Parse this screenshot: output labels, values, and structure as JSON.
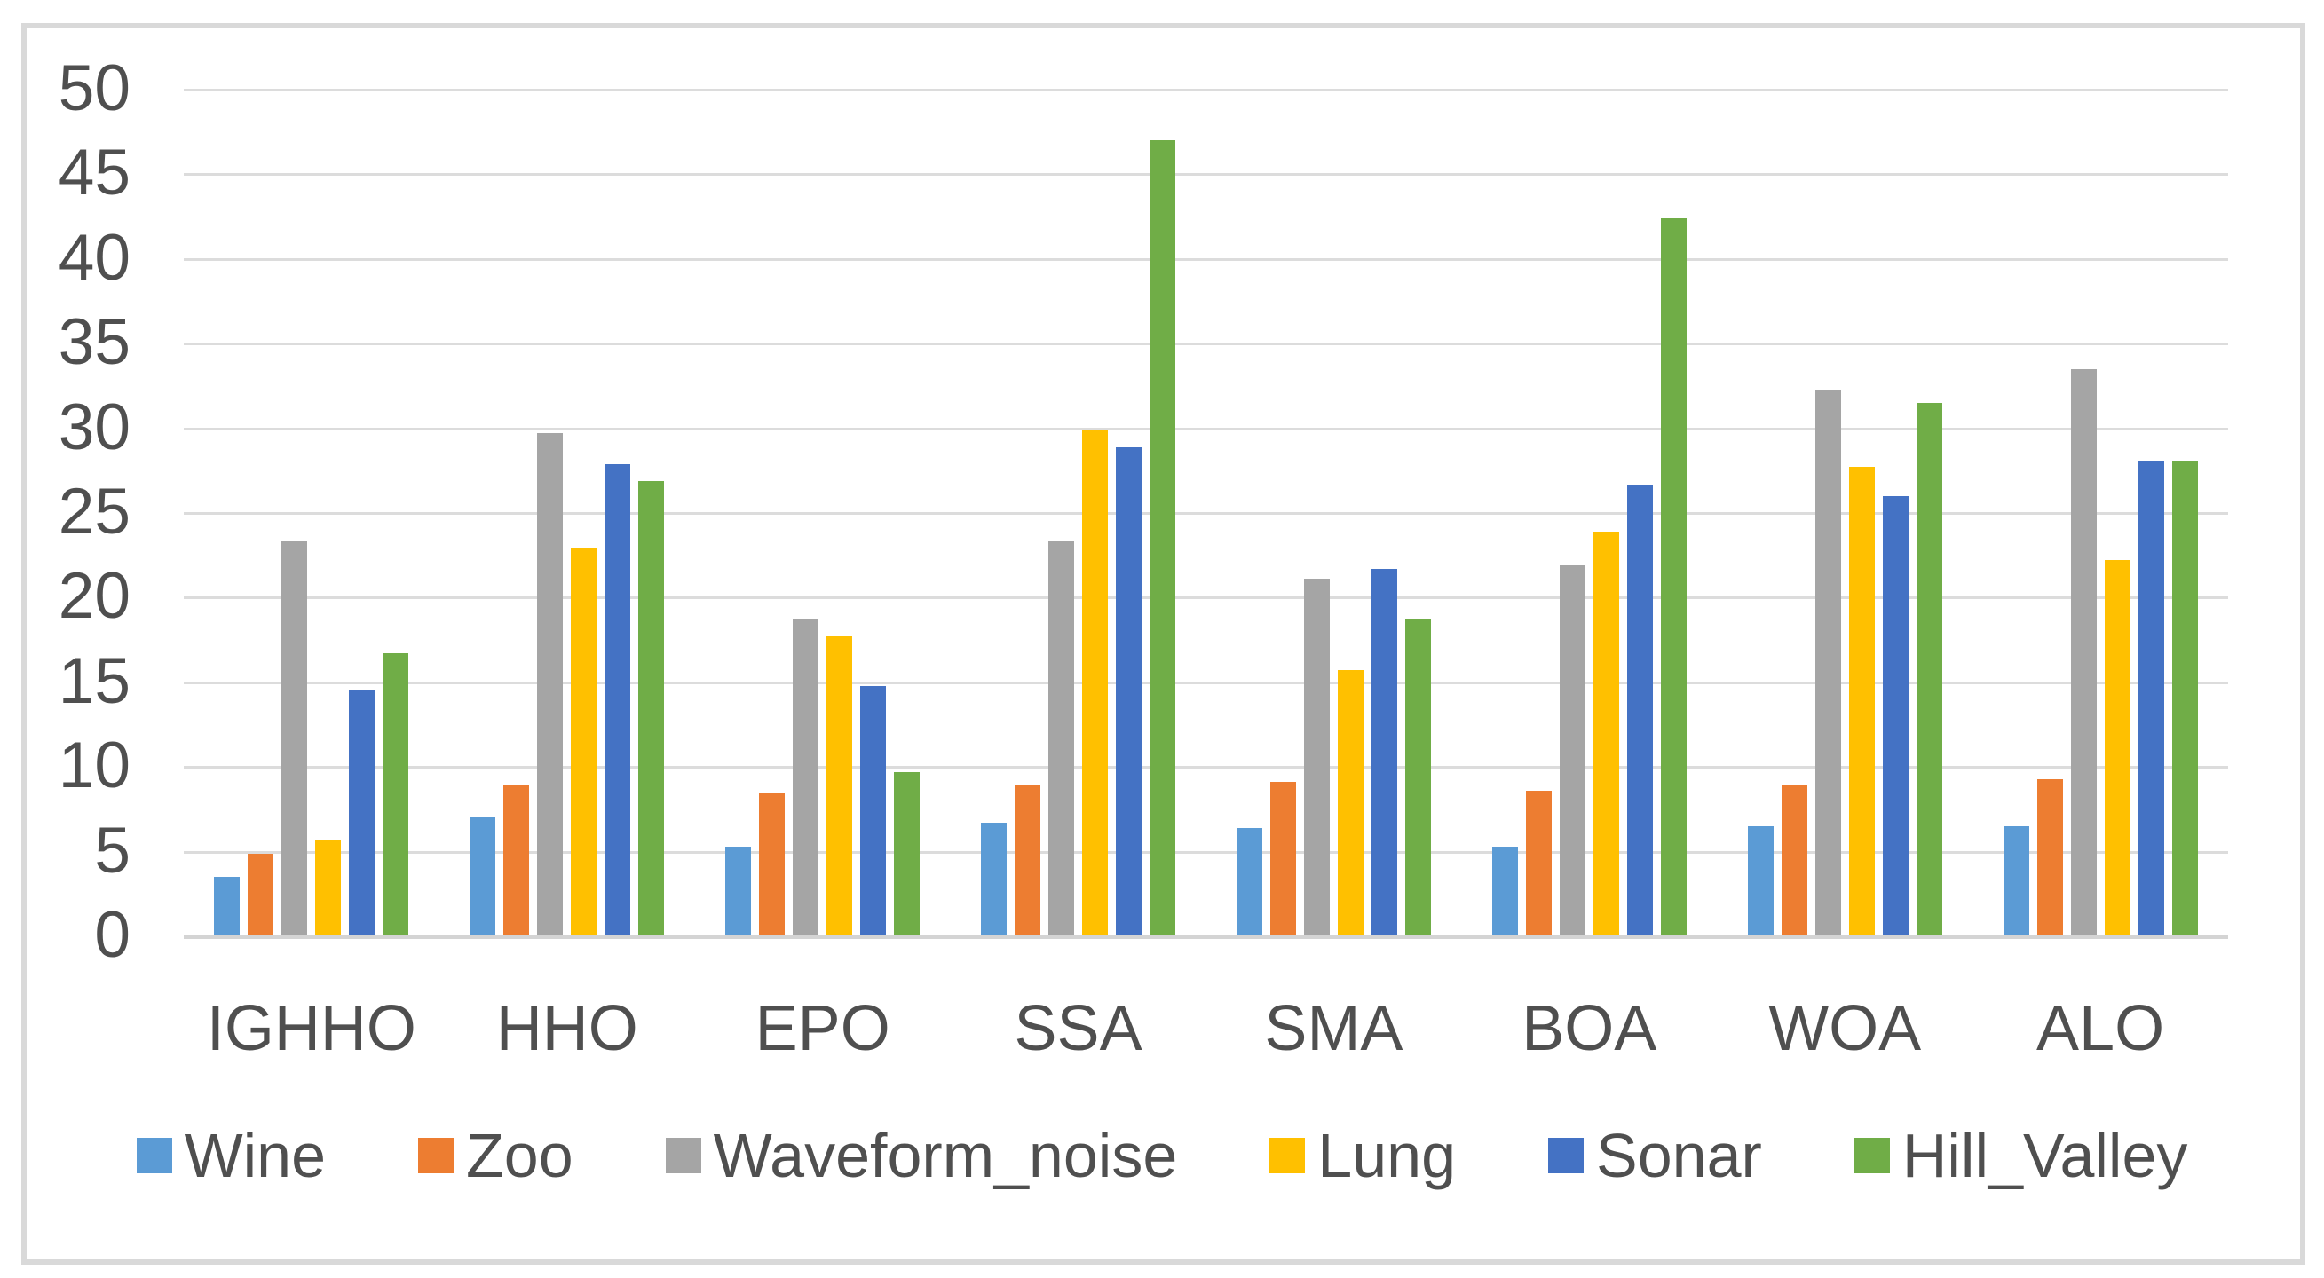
{
  "chart_data": {
    "type": "bar",
    "title": "",
    "categories": [
      "IGHHO",
      "HHO",
      "EPO",
      "SSA",
      "SMA",
      "BOA",
      "WOA",
      "ALO"
    ],
    "series": [
      {
        "name": "Wine",
        "color": "#5B9BD5",
        "values": [
          3.5,
          7.0,
          5.3,
          6.7,
          6.4,
          5.3,
          6.5,
          6.5
        ]
      },
      {
        "name": "Zoo",
        "color": "#ED7D31",
        "values": [
          4.9,
          8.9,
          8.5,
          8.9,
          9.1,
          8.6,
          8.9,
          9.3
        ]
      },
      {
        "name": "Waveform_noise",
        "color": "#A5A5A5",
        "values": [
          23.3,
          29.7,
          18.7,
          23.3,
          21.1,
          21.9,
          32.3,
          33.5
        ]
      },
      {
        "name": "Lung",
        "color": "#FFC000",
        "values": [
          5.7,
          22.9,
          17.7,
          29.9,
          15.7,
          23.9,
          27.7,
          22.2
        ]
      },
      {
        "name": "Sonar",
        "color": "#4472C4",
        "values": [
          14.5,
          27.9,
          14.8,
          28.9,
          21.7,
          26.7,
          26.0,
          28.1
        ]
      },
      {
        "name": "Hill_Valley",
        "color": "#70AD47",
        "values": [
          16.7,
          26.9,
          9.7,
          47.0,
          18.7,
          42.4,
          31.5,
          28.1
        ]
      }
    ],
    "ylim": [
      0,
      50
    ],
    "ytick_step": 5,
    "ytick_labels": [
      "0",
      "5",
      "10",
      "15",
      "20",
      "25",
      "30",
      "35",
      "40",
      "45",
      "50"
    ],
    "xlabel": "",
    "ylabel": "",
    "grid": true,
    "legend_position": "bottom"
  },
  "style_colors": {
    "background": "#ffffff",
    "frame_border": "#d9d9d9",
    "gridline": "#dcdcdc",
    "axis_line": "#d4d4d4",
    "tick_text": "#4f4f4f"
  }
}
